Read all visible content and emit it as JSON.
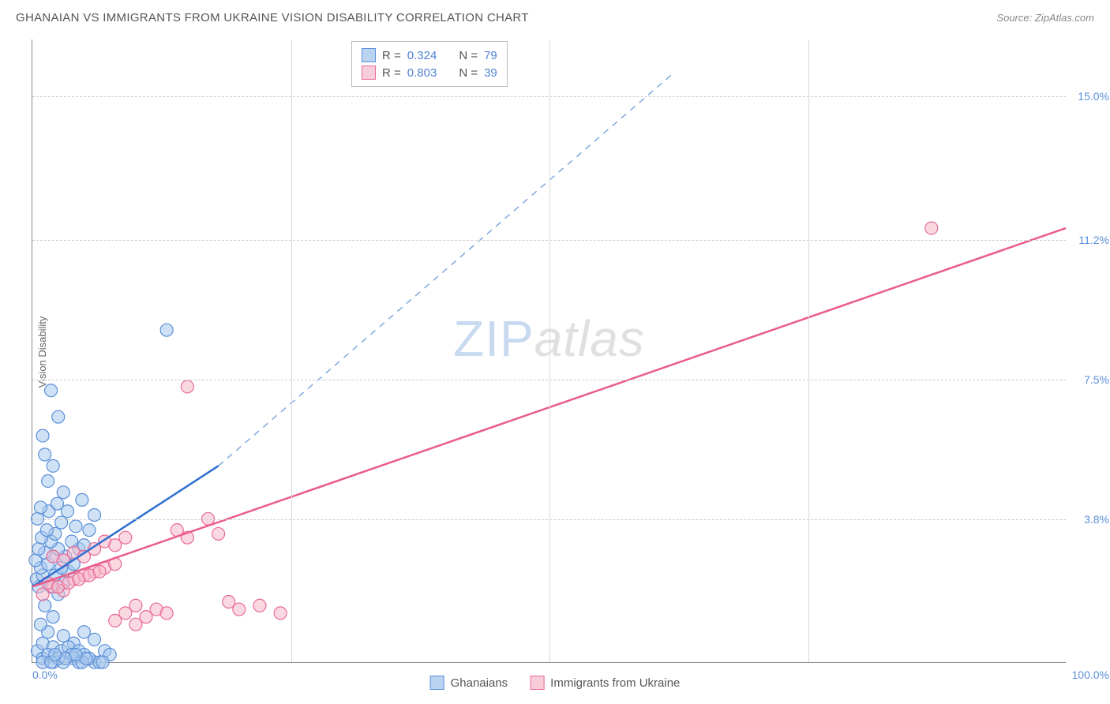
{
  "header": {
    "title": "GHANAIAN VS IMMIGRANTS FROM UKRAINE VISION DISABILITY CORRELATION CHART",
    "source_label": "Source:",
    "source_value": "ZipAtlas.com"
  },
  "watermark": {
    "part1": "ZIP",
    "part2": "atlas"
  },
  "chart": {
    "type": "scatter",
    "ylabel": "Vision Disability",
    "background_color": "#ffffff",
    "grid_color": "#cccccc",
    "axis_color": "#888888",
    "x_domain": [
      0,
      100
    ],
    "y_domain": [
      0,
      16.5
    ],
    "x_ticks": {
      "min_label": "0.0%",
      "max_label": "100.0%"
    },
    "y_ticks": [
      {
        "value": 3.8,
        "label": "3.8%"
      },
      {
        "value": 7.5,
        "label": "7.5%"
      },
      {
        "value": 11.2,
        "label": "11.2%"
      },
      {
        "value": 15.0,
        "label": "15.0%"
      }
    ],
    "x_gridlines": [
      25,
      50,
      75
    ],
    "marker_radius": 8,
    "series": {
      "ghanaians": {
        "label": "Ghanaians",
        "fill_color": "#a7c9ed",
        "stroke_color": "#5b8fd9",
        "r_value": "0.324",
        "n_value": "79",
        "trend": {
          "solid": {
            "x1": 0,
            "y1": 2.0,
            "x2": 18,
            "y2": 5.2
          },
          "dashed": {
            "x1": 18,
            "y1": 5.2,
            "x2": 62,
            "y2": 15.6
          },
          "solid_width": 2.5,
          "dash_pattern": "8 7",
          "solid_color": "#2f6fd0",
          "dash_color": "#7ea8dc"
        },
        "points": [
          [
            0.5,
            0.3
          ],
          [
            1.0,
            0.5
          ],
          [
            1.5,
            0.8
          ],
          [
            0.8,
            1.0
          ],
          [
            2.0,
            1.2
          ],
          [
            1.2,
            1.5
          ],
          [
            2.5,
            1.8
          ],
          [
            0.6,
            2.0
          ],
          [
            1.8,
            2.0
          ],
          [
            3.0,
            2.1
          ],
          [
            0.4,
            2.2
          ],
          [
            2.2,
            2.3
          ],
          [
            1.0,
            2.3
          ],
          [
            3.5,
            2.4
          ],
          [
            0.8,
            2.5
          ],
          [
            2.8,
            2.5
          ],
          [
            1.5,
            2.6
          ],
          [
            4.0,
            2.6
          ],
          [
            0.3,
            2.7
          ],
          [
            2.0,
            2.8
          ],
          [
            3.2,
            2.8
          ],
          [
            1.2,
            2.9
          ],
          [
            4.5,
            3.0
          ],
          [
            0.6,
            3.0
          ],
          [
            2.5,
            3.0
          ],
          [
            5.0,
            3.1
          ],
          [
            1.8,
            3.2
          ],
          [
            3.8,
            3.2
          ],
          [
            0.9,
            3.3
          ],
          [
            2.2,
            3.4
          ],
          [
            5.5,
            3.5
          ],
          [
            1.4,
            3.5
          ],
          [
            4.2,
            3.6
          ],
          [
            2.8,
            3.7
          ],
          [
            0.5,
            3.8
          ],
          [
            6.0,
            3.9
          ],
          [
            1.6,
            4.0
          ],
          [
            3.4,
            4.0
          ],
          [
            0.8,
            4.1
          ],
          [
            2.4,
            4.2
          ],
          [
            4.8,
            4.3
          ],
          [
            1.0,
            0.1
          ],
          [
            2.0,
            0.4
          ],
          [
            3.0,
            0.7
          ],
          [
            1.5,
            0.2
          ],
          [
            4.0,
            0.5
          ],
          [
            2.8,
            0.3
          ],
          [
            5.0,
            0.8
          ],
          [
            3.5,
            0.4
          ],
          [
            6.0,
            0.6
          ],
          [
            4.5,
            0.3
          ],
          [
            1.5,
            4.8
          ],
          [
            2.0,
            5.2
          ],
          [
            1.0,
            6.0
          ],
          [
            2.5,
            6.5
          ],
          [
            1.8,
            7.2
          ],
          [
            3.0,
            4.5
          ],
          [
            1.2,
            5.5
          ],
          [
            13.0,
            8.8
          ],
          [
            2.0,
            0.0
          ],
          [
            4.0,
            0.1
          ],
          [
            3.0,
            0.0
          ],
          [
            5.0,
            0.2
          ],
          [
            6.0,
            0.0
          ],
          [
            7.0,
            0.3
          ],
          [
            1.0,
            0.0
          ],
          [
            2.5,
            0.1
          ],
          [
            4.5,
            0.0
          ],
          [
            3.8,
            0.2
          ],
          [
            5.5,
            0.1
          ],
          [
            6.5,
            0.0
          ],
          [
            7.5,
            0.2
          ],
          [
            1.8,
            0.0
          ],
          [
            3.2,
            0.1
          ],
          [
            4.8,
            0.0
          ],
          [
            2.2,
            0.2
          ],
          [
            5.2,
            0.1
          ],
          [
            6.8,
            0.0
          ],
          [
            4.2,
            0.2
          ]
        ]
      },
      "ukraine": {
        "label": "Immigrants from Ukraine",
        "fill_color": "#f5b8ca",
        "stroke_color": "#e96b95",
        "r_value": "0.803",
        "n_value": "39",
        "trend": {
          "x1": 0,
          "y1": 2.0,
          "x2": 100,
          "y2": 11.5,
          "color": "#ea5c8a",
          "width": 2.5
        },
        "points": [
          [
            1.0,
            1.8
          ],
          [
            2.0,
            2.0
          ],
          [
            3.0,
            1.9
          ],
          [
            1.5,
            2.1
          ],
          [
            4.0,
            2.2
          ],
          [
            2.5,
            2.0
          ],
          [
            5.0,
            2.3
          ],
          [
            3.5,
            2.1
          ],
          [
            6.0,
            2.4
          ],
          [
            4.5,
            2.2
          ],
          [
            7.0,
            2.5
          ],
          [
            5.5,
            2.3
          ],
          [
            8.0,
            2.6
          ],
          [
            6.5,
            2.4
          ],
          [
            2.0,
            2.8
          ],
          [
            3.0,
            2.7
          ],
          [
            4.0,
            2.9
          ],
          [
            5.0,
            2.8
          ],
          [
            6.0,
            3.0
          ],
          [
            7.0,
            3.2
          ],
          [
            8.0,
            3.1
          ],
          [
            9.0,
            3.3
          ],
          [
            10.0,
            1.5
          ],
          [
            11.0,
            1.2
          ],
          [
            12.0,
            1.4
          ],
          [
            13.0,
            1.3
          ],
          [
            10.0,
            1.0
          ],
          [
            14.0,
            3.5
          ],
          [
            15.0,
            3.3
          ],
          [
            17.0,
            3.8
          ],
          [
            18.0,
            3.4
          ],
          [
            19.0,
            1.6
          ],
          [
            20.0,
            1.4
          ],
          [
            22.0,
            1.5
          ],
          [
            24.0,
            1.3
          ],
          [
            15.0,
            7.3
          ],
          [
            87.0,
            11.5
          ],
          [
            8.0,
            1.1
          ],
          [
            9.0,
            1.3
          ]
        ]
      }
    },
    "top_legend": {
      "r_label": "R =",
      "n_label": "N ="
    }
  }
}
